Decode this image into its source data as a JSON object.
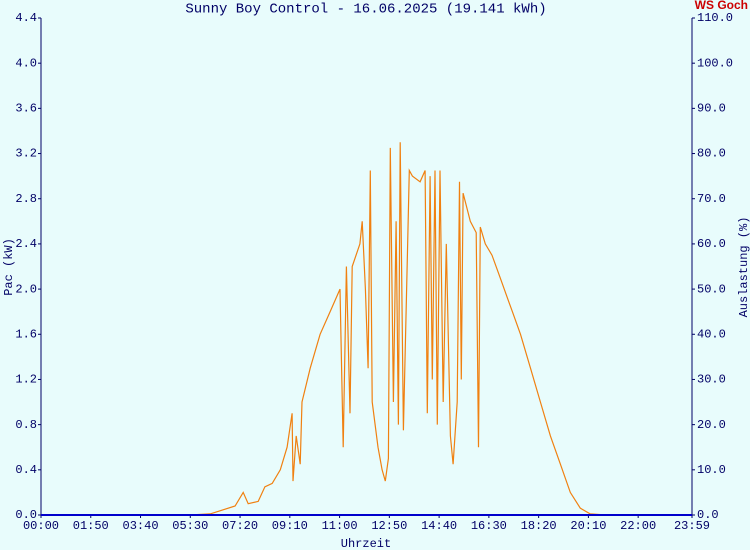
{
  "chart_data": {
    "type": "line",
    "title": "Sunny Boy Control - 16.06.2025 (19.141 kWh)",
    "corner_label": "WS Goch",
    "x_label": "Uhrzeit",
    "y_label": "Pac (kW)",
    "y2_label": "Auslastung (%)",
    "background": "#e8fcfc",
    "axis_color": "#0000cc",
    "xlim": [
      0,
      1439
    ],
    "xticks": [
      {
        "value": 0,
        "label": "00:00"
      },
      {
        "value": 110,
        "label": "01:50"
      },
      {
        "value": 220,
        "label": "03:40"
      },
      {
        "value": 330,
        "label": "05:30"
      },
      {
        "value": 440,
        "label": "07:20"
      },
      {
        "value": 550,
        "label": "09:10"
      },
      {
        "value": 660,
        "label": "11:00"
      },
      {
        "value": 770,
        "label": "12:50"
      },
      {
        "value": 880,
        "label": "14:40"
      },
      {
        "value": 990,
        "label": "16:30"
      },
      {
        "value": 1100,
        "label": "18:20"
      },
      {
        "value": 1210,
        "label": "20:10"
      },
      {
        "value": 1320,
        "label": "22:00"
      },
      {
        "value": 1439,
        "label": "23:59"
      }
    ],
    "ylim": [
      0,
      4.4
    ],
    "yticks": [
      {
        "value": 0,
        "label": "0.0"
      },
      {
        "value": 0.4,
        "label": "0.4"
      },
      {
        "value": 0.8,
        "label": "0.8"
      },
      {
        "value": 1.2,
        "label": "1.2"
      },
      {
        "value": 1.6,
        "label": "1.6"
      },
      {
        "value": 2.0,
        "label": "2.0"
      },
      {
        "value": 2.4,
        "label": "2.4"
      },
      {
        "value": 2.8,
        "label": "2.8"
      },
      {
        "value": 3.2,
        "label": "3.2"
      },
      {
        "value": 3.6,
        "label": "3.6"
      },
      {
        "value": 4.0,
        "label": "4.0"
      },
      {
        "value": 4.4,
        "label": "4.4"
      }
    ],
    "y2lim": [
      0,
      110
    ],
    "y2ticks": [
      {
        "value": 0,
        "label": "0.0"
      },
      {
        "value": 10,
        "label": "10.0"
      },
      {
        "value": 20,
        "label": "20.0"
      },
      {
        "value": 30,
        "label": "30.0"
      },
      {
        "value": 40,
        "label": "40.0"
      },
      {
        "value": 50,
        "label": "50.0"
      },
      {
        "value": 60,
        "label": "60.0"
      },
      {
        "value": 70,
        "label": "70.0"
      },
      {
        "value": 80,
        "label": "80.0"
      },
      {
        "value": 90,
        "label": "90.0"
      },
      {
        "value": 100,
        "label": "100.0"
      },
      {
        "value": 110,
        "label": "110.0"
      }
    ],
    "series": [
      {
        "color": "#f08010",
        "x": [
          0,
          330,
          374,
          429,
          447,
          458,
          480,
          495,
          511,
          529,
          544,
          555,
          557,
          564,
          573,
          577,
          595,
          617,
          639,
          661,
          668,
          675,
          683,
          688,
          705,
          710,
          717,
          723,
          728,
          732,
          745,
          754,
          761,
          768,
          772,
          779,
          785,
          790,
          794,
          801,
          810,
          814,
          821,
          838,
          849,
          854,
          860,
          865,
          871,
          876,
          882,
          889,
          896,
          905,
          911,
          920,
          925,
          929,
          933,
          949,
          962,
          967,
          971,
          982,
          997,
          1015,
          1033,
          1042,
          1060,
          1082,
          1104,
          1126,
          1148,
          1170,
          1192,
          1214,
          1248,
          1439
        ],
        "values": [
          0,
          0,
          0.01,
          0.08,
          0.2,
          0.1,
          0.12,
          0.25,
          0.28,
          0.4,
          0.6,
          0.9,
          0.3,
          0.7,
          0.45,
          1.0,
          1.3,
          1.6,
          1.8,
          2.0,
          0.6,
          2.2,
          0.9,
          2.2,
          2.4,
          2.6,
          2.0,
          1.3,
          3.05,
          1.0,
          0.6,
          0.4,
          0.3,
          0.5,
          3.25,
          1.0,
          2.6,
          0.8,
          3.3,
          0.75,
          2.3,
          3.05,
          3.0,
          2.95,
          3.05,
          0.9,
          3.0,
          1.2,
          3.05,
          0.8,
          3.05,
          1.0,
          2.4,
          0.7,
          0.45,
          1.0,
          2.95,
          1.2,
          2.85,
          2.6,
          2.5,
          0.6,
          2.55,
          2.4,
          2.3,
          2.1,
          1.9,
          1.8,
          1.6,
          1.3,
          1.0,
          0.7,
          0.45,
          0.2,
          0.06,
          0.01,
          0,
          0
        ]
      }
    ]
  }
}
